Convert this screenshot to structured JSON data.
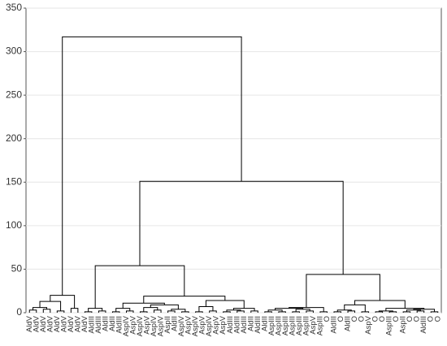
{
  "chart_data": {
    "type": "dendrogram",
    "ylim": [
      0,
      350
    ],
    "yticks": [
      0,
      50,
      100,
      150,
      200,
      250,
      300,
      350
    ],
    "grid": true,
    "color": "#000000",
    "leaves": [
      "AldV",
      "AldV",
      "AldV",
      "AldV",
      "AldV",
      "AldV",
      "AldV",
      "AldV",
      "AldV",
      "AldIII",
      "AldIII",
      "AldII",
      "AldII",
      "AldIII",
      "AspIV",
      "AspV",
      "AspIV",
      "AspV",
      "AspIV",
      "AspIV",
      "AspII",
      "AldII",
      "AspIV",
      "AspV",
      "AspIV",
      "AspV",
      "AspIV",
      "AspV",
      "AspV",
      "AldIII",
      "AldIII",
      "AldIII",
      "AldII",
      "AldIII",
      "AldII",
      "AspIII",
      "AspIII",
      "AspIII",
      "AspIII",
      "AspIII",
      "AspIII",
      "AspV",
      "AspIII",
      "O",
      "AldIII",
      "O",
      "AldII",
      "O",
      "O",
      "AspV",
      "O",
      "O",
      "AspIII",
      "O",
      "AspII",
      "O",
      "O",
      "AldIII",
      "O",
      "O"
    ],
    "merges": [
      [
        0,
        1,
        3
      ],
      [
        2,
        3,
        4
      ],
      [
        60,
        61,
        6
      ],
      [
        4,
        5,
        2
      ],
      [
        62,
        63,
        13
      ],
      [
        6,
        7,
        5
      ],
      [
        64,
        65,
        20
      ],
      [
        8,
        9,
        1
      ],
      [
        10,
        11,
        2
      ],
      [
        67,
        68,
        5
      ],
      [
        12,
        13,
        1
      ],
      [
        14,
        15,
        2
      ],
      [
        70,
        71,
        5
      ],
      [
        16,
        17,
        1
      ],
      [
        18,
        19,
        3
      ],
      [
        73,
        74,
        6
      ],
      [
        20,
        21,
        2
      ],
      [
        22,
        23,
        1
      ],
      [
        76,
        77,
        4
      ],
      [
        75,
        78,
        9
      ],
      [
        72,
        79,
        11
      ],
      [
        24,
        25,
        1
      ],
      [
        26,
        27,
        2
      ],
      [
        81,
        82,
        7
      ],
      [
        28,
        29,
        1
      ],
      [
        30,
        31,
        2
      ],
      [
        84,
        85,
        3
      ],
      [
        32,
        33,
        2
      ],
      [
        86,
        87,
        5
      ],
      [
        83,
        88,
        14
      ],
      [
        80,
        89,
        19
      ],
      [
        69,
        90,
        54
      ],
      [
        34,
        35,
        1
      ],
      [
        36,
        37,
        1
      ],
      [
        92,
        93,
        3
      ],
      [
        38,
        39,
        1
      ],
      [
        40,
        41,
        2
      ],
      [
        95,
        96,
        4
      ],
      [
        94,
        97,
        5
      ],
      [
        42,
        43,
        1
      ],
      [
        98,
        99,
        6
      ],
      [
        44,
        45,
        1
      ],
      [
        46,
        47,
        2
      ],
      [
        101,
        102,
        3
      ],
      [
        48,
        49,
        1
      ],
      [
        103,
        104,
        9
      ],
      [
        50,
        51,
        1
      ],
      [
        52,
        53,
        1
      ],
      [
        106,
        107,
        2
      ],
      [
        54,
        55,
        1
      ],
      [
        56,
        57,
        2
      ],
      [
        109,
        110,
        3
      ],
      [
        58,
        59,
        1
      ],
      [
        111,
        112,
        4
      ],
      [
        108,
        113,
        5
      ],
      [
        105,
        114,
        14
      ],
      [
        100,
        115,
        44
      ],
      [
        91,
        116,
        151
      ],
      [
        66,
        117,
        317
      ]
    ]
  }
}
